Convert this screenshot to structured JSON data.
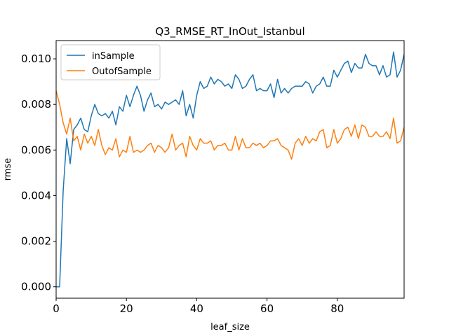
{
  "chart_data": {
    "type": "line",
    "title": "Q3_RMSE_RT_InOut_Istanbul",
    "xlabel": "leaf_size",
    "ylabel": "rmse",
    "xlim": [
      0,
      99
    ],
    "ylim": [
      -0.0005,
      0.0108
    ],
    "xticks": [
      0,
      20,
      40,
      60,
      80
    ],
    "xtick_labels": [
      "0",
      "20",
      "40",
      "60",
      "80"
    ],
    "yticks": [
      0.0,
      0.002,
      0.004,
      0.006,
      0.008,
      0.01
    ],
    "ytick_labels": [
      "0.000",
      "0.002",
      "0.004",
      "0.006",
      "0.008",
      "0.010"
    ],
    "legend_position": "top-left",
    "grid": false,
    "series": [
      {
        "name": "inSample",
        "color": "#1f77b4",
        "values": [
          0.0,
          0.0,
          0.0042,
          0.0065,
          0.0054,
          0.0069,
          0.0071,
          0.0074,
          0.0069,
          0.0068,
          0.0075,
          0.008,
          0.0076,
          0.0075,
          0.0076,
          0.0074,
          0.0077,
          0.0071,
          0.0079,
          0.0077,
          0.0084,
          0.0079,
          0.0084,
          0.0088,
          0.0084,
          0.0077,
          0.0082,
          0.0085,
          0.0079,
          0.008,
          0.0078,
          0.0081,
          0.008,
          0.0081,
          0.0082,
          0.008,
          0.0086,
          0.0075,
          0.008,
          0.0074,
          0.0084,
          0.009,
          0.0087,
          0.0088,
          0.0092,
          0.0089,
          0.0091,
          0.009,
          0.0088,
          0.0089,
          0.0087,
          0.0093,
          0.0091,
          0.0087,
          0.0088,
          0.0091,
          0.0093,
          0.0086,
          0.0087,
          0.0086,
          0.0086,
          0.0089,
          0.0083,
          0.0091,
          0.0085,
          0.0087,
          0.0085,
          0.0087,
          0.0088,
          0.0088,
          0.0088,
          0.009,
          0.0089,
          0.0085,
          0.0088,
          0.0089,
          0.0092,
          0.0088,
          0.0088,
          0.0095,
          0.0092,
          0.0095,
          0.0098,
          0.0099,
          0.0094,
          0.0098,
          0.0096,
          0.0096,
          0.0102,
          0.0098,
          0.0097,
          0.0097,
          0.0093,
          0.0097,
          0.0092,
          0.0093,
          0.0103,
          0.0092,
          0.0095,
          0.0102
        ]
      },
      {
        "name": "OutofSample",
        "color": "#ff7f0e",
        "values": [
          0.0086,
          0.008,
          0.0072,
          0.0067,
          0.0074,
          0.0064,
          0.0066,
          0.006,
          0.0067,
          0.0063,
          0.0066,
          0.0062,
          0.0069,
          0.0062,
          0.0058,
          0.0061,
          0.006,
          0.0065,
          0.0057,
          0.006,
          0.0059,
          0.0066,
          0.0059,
          0.006,
          0.0059,
          0.006,
          0.0062,
          0.0063,
          0.0059,
          0.0062,
          0.0061,
          0.0059,
          0.0061,
          0.0067,
          0.006,
          0.0062,
          0.0063,
          0.0057,
          0.0066,
          0.0062,
          0.006,
          0.0065,
          0.0063,
          0.0063,
          0.0064,
          0.006,
          0.0062,
          0.0062,
          0.0063,
          0.006,
          0.006,
          0.0066,
          0.006,
          0.0065,
          0.0061,
          0.0061,
          0.0063,
          0.0062,
          0.0063,
          0.0061,
          0.0062,
          0.0064,
          0.0064,
          0.0065,
          0.0062,
          0.0061,
          0.006,
          0.0056,
          0.0063,
          0.0065,
          0.0062,
          0.0066,
          0.0063,
          0.0065,
          0.0064,
          0.0068,
          0.0069,
          0.0061,
          0.0062,
          0.0069,
          0.0063,
          0.0065,
          0.0069,
          0.007,
          0.0066,
          0.0071,
          0.0065,
          0.0071,
          0.007,
          0.0066,
          0.0066,
          0.0068,
          0.0066,
          0.0066,
          0.0068,
          0.0065,
          0.0074,
          0.0063,
          0.0064,
          0.007
        ]
      }
    ]
  }
}
